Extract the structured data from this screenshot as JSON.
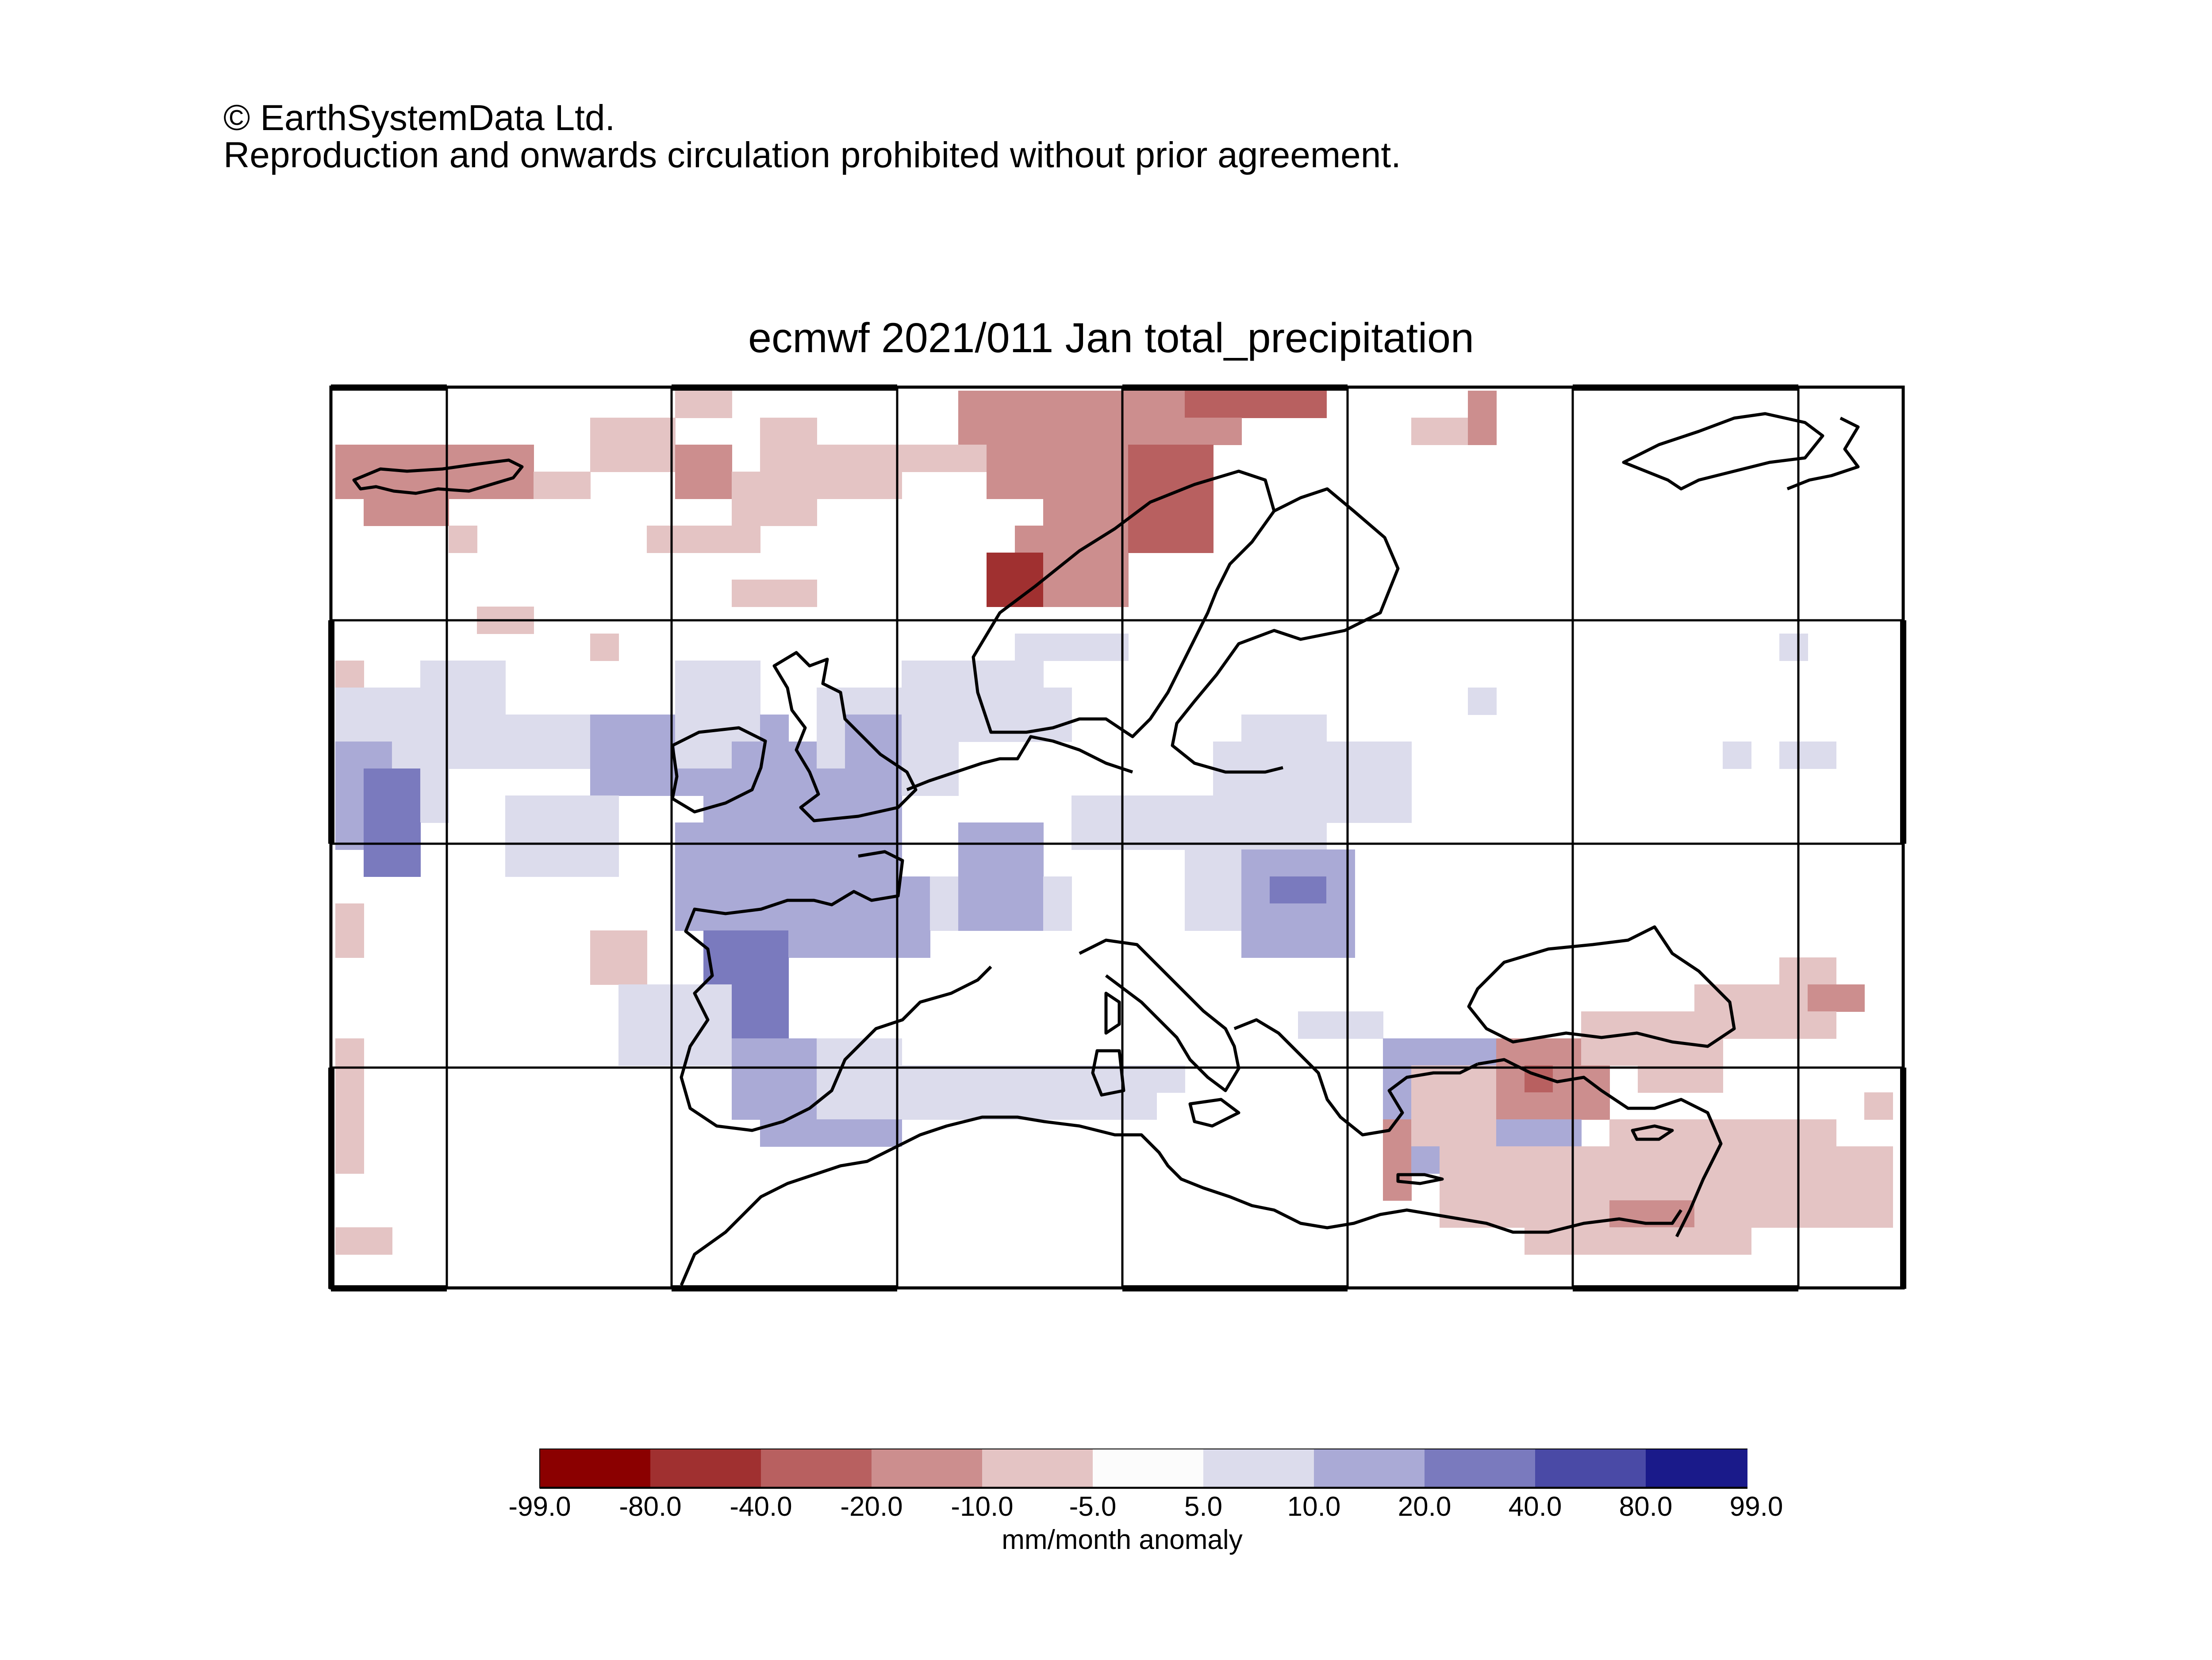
{
  "copyright": {
    "line1": "© EarthSystemData Ltd.",
    "line2": "Reproduction and onwards circulation prohibited without prior agreement."
  },
  "title": "ecmwf 2021/011 Jan total_precipitation",
  "legend": {
    "units": "mm/month anomaly",
    "bounds": [
      "-99.0",
      "-80.0",
      "-40.0",
      "-20.0",
      "-10.0",
      "-5.0",
      "5.0",
      "10.0",
      "20.0",
      "40.0",
      "80.0",
      "99.0"
    ],
    "colors": [
      "#8b0000",
      "#a03030",
      "#b86060",
      "#cc8e8e",
      "#e4c4c4",
      "#fcfcfc",
      "#dcdcec",
      "#aaaad6",
      "#7a7abe",
      "#4a4aa6",
      "#1a1a8a"
    ]
  },
  "map": {
    "region": "Europe / Mediterranean",
    "anomaly_regions": [
      {
        "area": "Norway / Norwegian Sea",
        "class": -3
      },
      {
        "area": "Iceland",
        "class": -2
      },
      {
        "area": "North Atlantic south of Iceland",
        "class": -2
      },
      {
        "area": "British Isles",
        "class": 2
      },
      {
        "area": "Bay of Biscay / France",
        "class": 2
      },
      {
        "area": "Iberian Peninsula",
        "class": 2
      },
      {
        "area": "Atlantic west of Iberia",
        "class": 3
      },
      {
        "area": "Italy / Adriatic",
        "class": 2
      },
      {
        "area": "North Sea",
        "class": 1
      },
      {
        "area": "Aegean / Turkey",
        "class": -2
      },
      {
        "area": "Levant / Cyprus",
        "class": -2
      },
      {
        "area": "Libya coast",
        "class": -1
      },
      {
        "area": "Ionian Sea",
        "class": 2
      }
    ]
  }
}
